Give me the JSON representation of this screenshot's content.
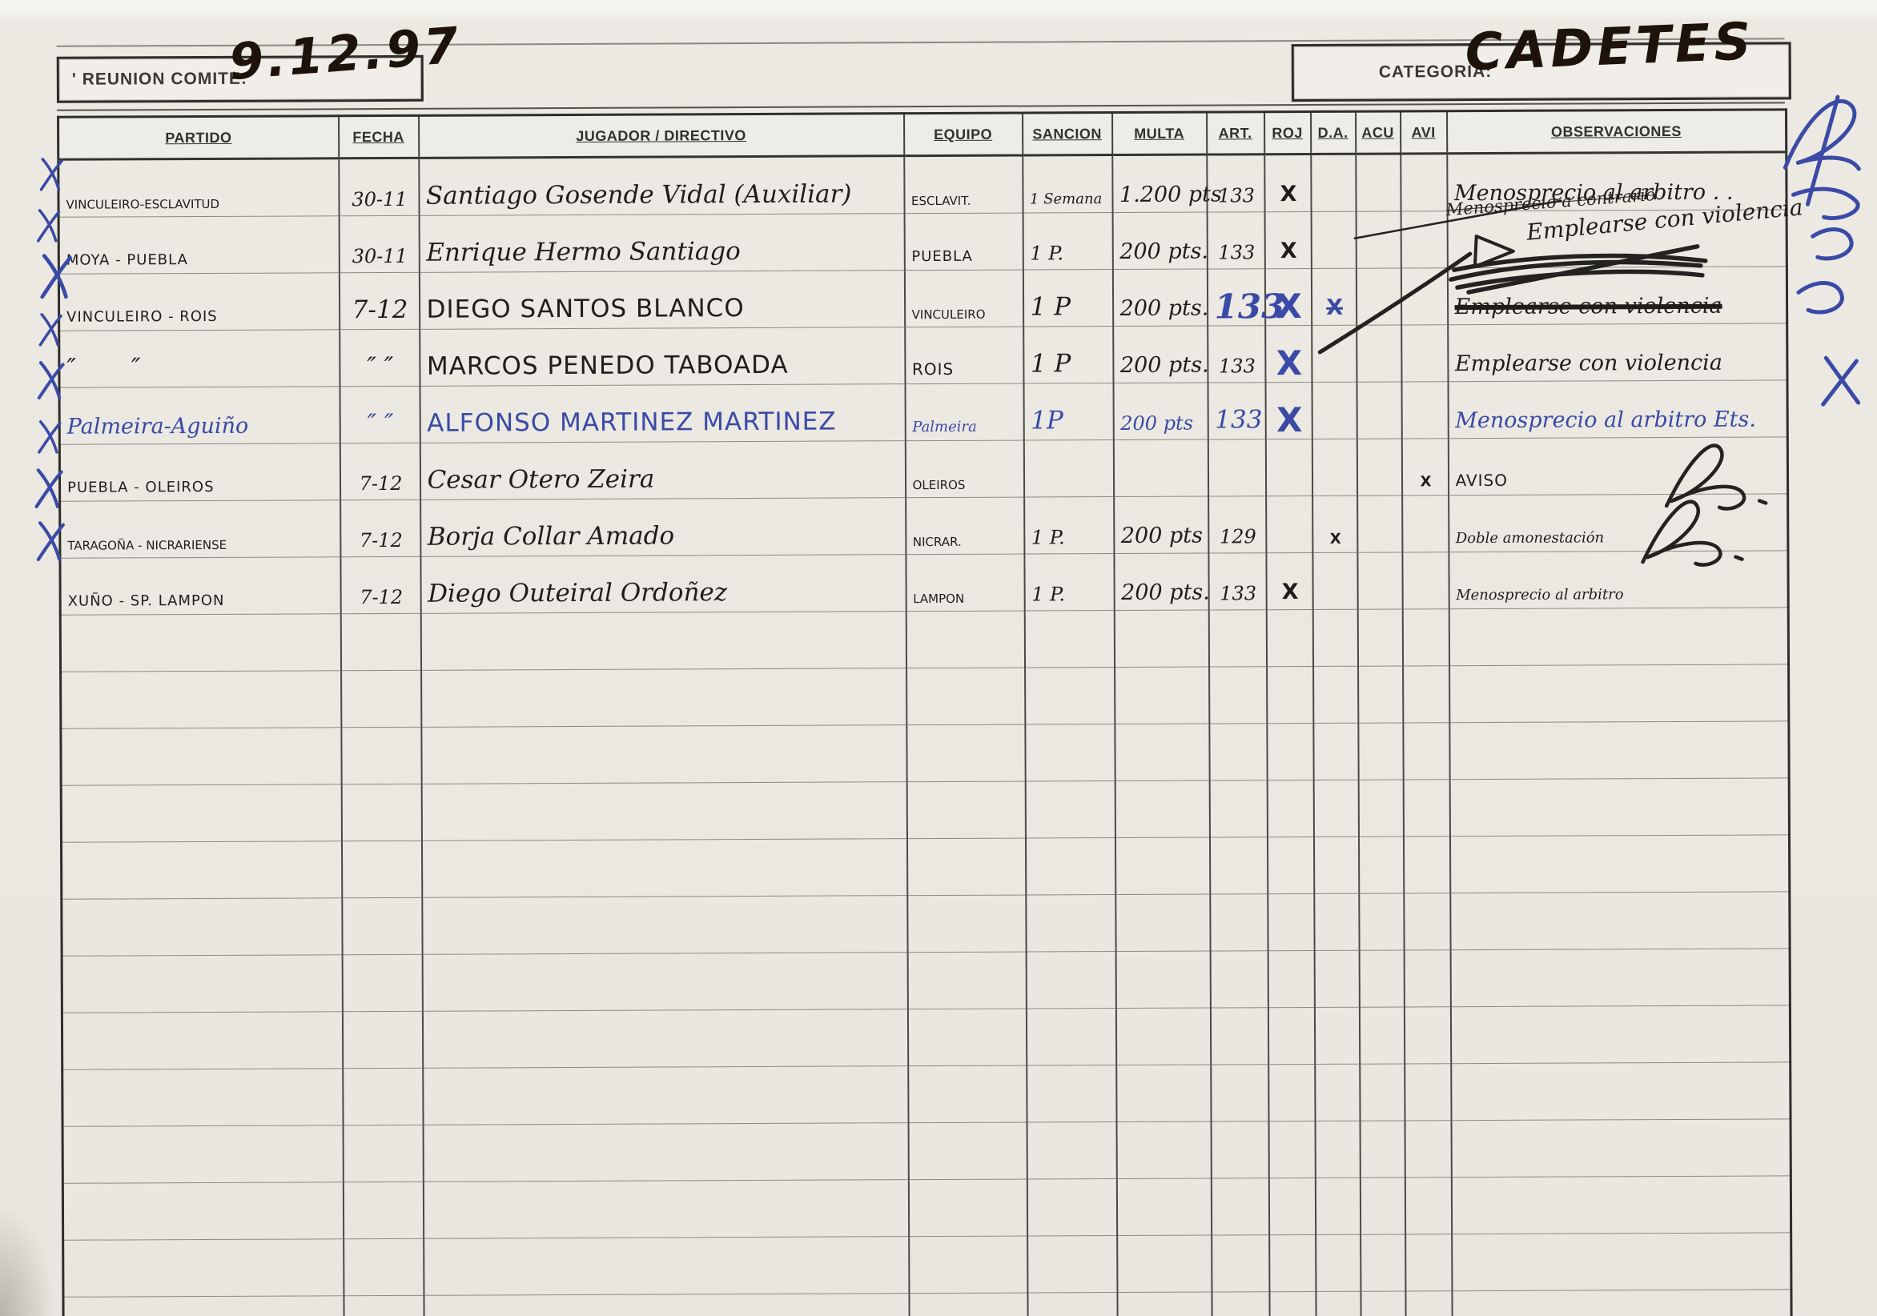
{
  "header": {
    "reunion_label": "' REUNION COMITE:",
    "reunion_value": "9.12.97",
    "categoria_label": "CATEGORIA:",
    "categoria_value": "CADETES"
  },
  "colors": {
    "blue_ink": "#3a4aa6",
    "black_ink": "#1f1d1b",
    "marker_ink": "#1d130a",
    "paper": "#ebe8e1"
  },
  "table": {
    "columns": [
      {
        "key": "partido",
        "label": "PARTIDO"
      },
      {
        "key": "fecha",
        "label": "FECHA"
      },
      {
        "key": "jugador",
        "label": "JUGADOR / DIRECTIVO"
      },
      {
        "key": "equipo",
        "label": "EQUIPO"
      },
      {
        "key": "sancion",
        "label": "SANCION"
      },
      {
        "key": "multa",
        "label": "MULTA"
      },
      {
        "key": "art",
        "label": "ART."
      },
      {
        "key": "roj",
        "label": "ROJ"
      },
      {
        "key": "da",
        "label": "D.A."
      },
      {
        "key": "acu",
        "label": "ACU"
      },
      {
        "key": "avi",
        "label": "AVI"
      },
      {
        "key": "obs",
        "label": "OBSERVACIONES"
      }
    ],
    "rows": [
      {
        "cells": [
          "VINCULEIRO-ESCLAVITUD",
          "30-11",
          "Santiago Gosende Vidal (Auxiliar)",
          "ESCLAVIT.",
          "1 Semana",
          "1.200 pts",
          "133",
          "X",
          "",
          "",
          "",
          "Menosprecio al arbitro . ."
        ],
        "cls": [
          "hand-print xs",
          "hand-num",
          "hand-cursive lg",
          "hand-print xs",
          "hand-cursive sm",
          "hand-cursive",
          "hand-num",
          "hand-x",
          "",
          "",
          "",
          "hand-cursive"
        ]
      },
      {
        "cells": [
          "MOYA - PUEBLA",
          "30-11",
          "Enrique Hermo Santiago",
          "PUEBLA",
          "1 P.",
          "200 pts.",
          "133",
          "X",
          "",
          "",
          "",
          ""
        ],
        "cls": [
          "hand-print sm",
          "hand-num",
          "hand-cursive lg",
          "hand-print sm",
          "hand-num",
          "hand-cursive",
          "hand-num",
          "hand-x",
          "",
          "",
          "",
          ""
        ]
      },
      {
        "cells": [
          "VINCULEIRO - ROIS",
          "7-12",
          "DIEGO SANTOS BLANCO",
          "VINCULEIRO",
          "1 P",
          "200 pts.",
          "133",
          "X",
          "X",
          "",
          "",
          "Emplearse con violencia"
        ],
        "cls": [
          "hand-print sm",
          "hand-num lg",
          "hand-print lg",
          "hand-print xs",
          "hand-num lg",
          "hand-cursive",
          "hand-num blue big",
          "hand-x blue big",
          "hand-x blue struck",
          "",
          "",
          "hand-cursive struck-heavy"
        ]
      },
      {
        "cells": [
          "″       ″",
          "″ ″",
          "MARCOS PENEDO TABOADA",
          "ROIS",
          "1 P",
          "200 pts.",
          "133",
          "X",
          "",
          "",
          "",
          "Emplearse con violencia"
        ],
        "cls": [
          "hand-num lg",
          "hand-num lg",
          "hand-print lg",
          "hand-print",
          "hand-num lg",
          "hand-cursive",
          "hand-num",
          "hand-x blue big",
          "",
          "",
          "",
          "hand-cursive"
        ]
      },
      {
        "cells": [
          "Palmeira-Aguiño",
          "″ ″",
          "ALFONSO MARTINEZ MARTINEZ",
          "Palmeira",
          "1P",
          "200 pts",
          "133",
          "X",
          "",
          "",
          "",
          "Menosprecio al arbitro Ets."
        ],
        "cls": [
          "hand-cursive blue",
          "hand-num blue lg",
          "hand-print blue lg",
          "hand-cursive blue sm",
          "hand-num blue lg",
          "hand-num blue",
          "hand-num blue lg",
          "hand-x blue big",
          "",
          "",
          "",
          "hand-cursive blue"
        ]
      },
      {
        "cells": [
          "PUEBLA - OLEIROS",
          "7-12",
          "Cesar Otero Zeira",
          "OLEIROS",
          "",
          "",
          "",
          "",
          "",
          "",
          "X",
          "AVISO"
        ],
        "cls": [
          "hand-print sm",
          "hand-num",
          "hand-cursive lg",
          "hand-print xs",
          "",
          "",
          "",
          "",
          "",
          "",
          "hand-x sm",
          "hand-print"
        ]
      },
      {
        "cells": [
          "TARAGOÑA - NICRARIENSE",
          "7-12",
          "Borja Collar Amado",
          "NICRAR.",
          "1 P.",
          "200 pts",
          "129",
          "",
          "X",
          "",
          "",
          "Doble amonestación"
        ],
        "cls": [
          "hand-print xs",
          "hand-num",
          "hand-cursive lg",
          "hand-print xs",
          "hand-num",
          "hand-cursive",
          "hand-num",
          "",
          "hand-x sm",
          "",
          "",
          "hand-cursive sm"
        ]
      },
      {
        "cells": [
          "XUÑO - SP. LAMPON",
          "7-12",
          "Diego Outeiral Ordoñez",
          "LAMPON",
          "1 P.",
          "200 pts.",
          "133",
          "X",
          "",
          "",
          "",
          "Menosprecio al arbitro"
        ],
        "cls": [
          "hand-print sm",
          "hand-num",
          "hand-cursive lg",
          "hand-print xs",
          "hand-num",
          "hand-cursive",
          "hand-num",
          "hand-x",
          "",
          "",
          "",
          "hand-cursive sm"
        ]
      }
    ],
    "empty_row_count": 13,
    "annotations": {
      "note1": "Menosprecio a contrario",
      "note2": "Emplearse con violencia"
    }
  }
}
